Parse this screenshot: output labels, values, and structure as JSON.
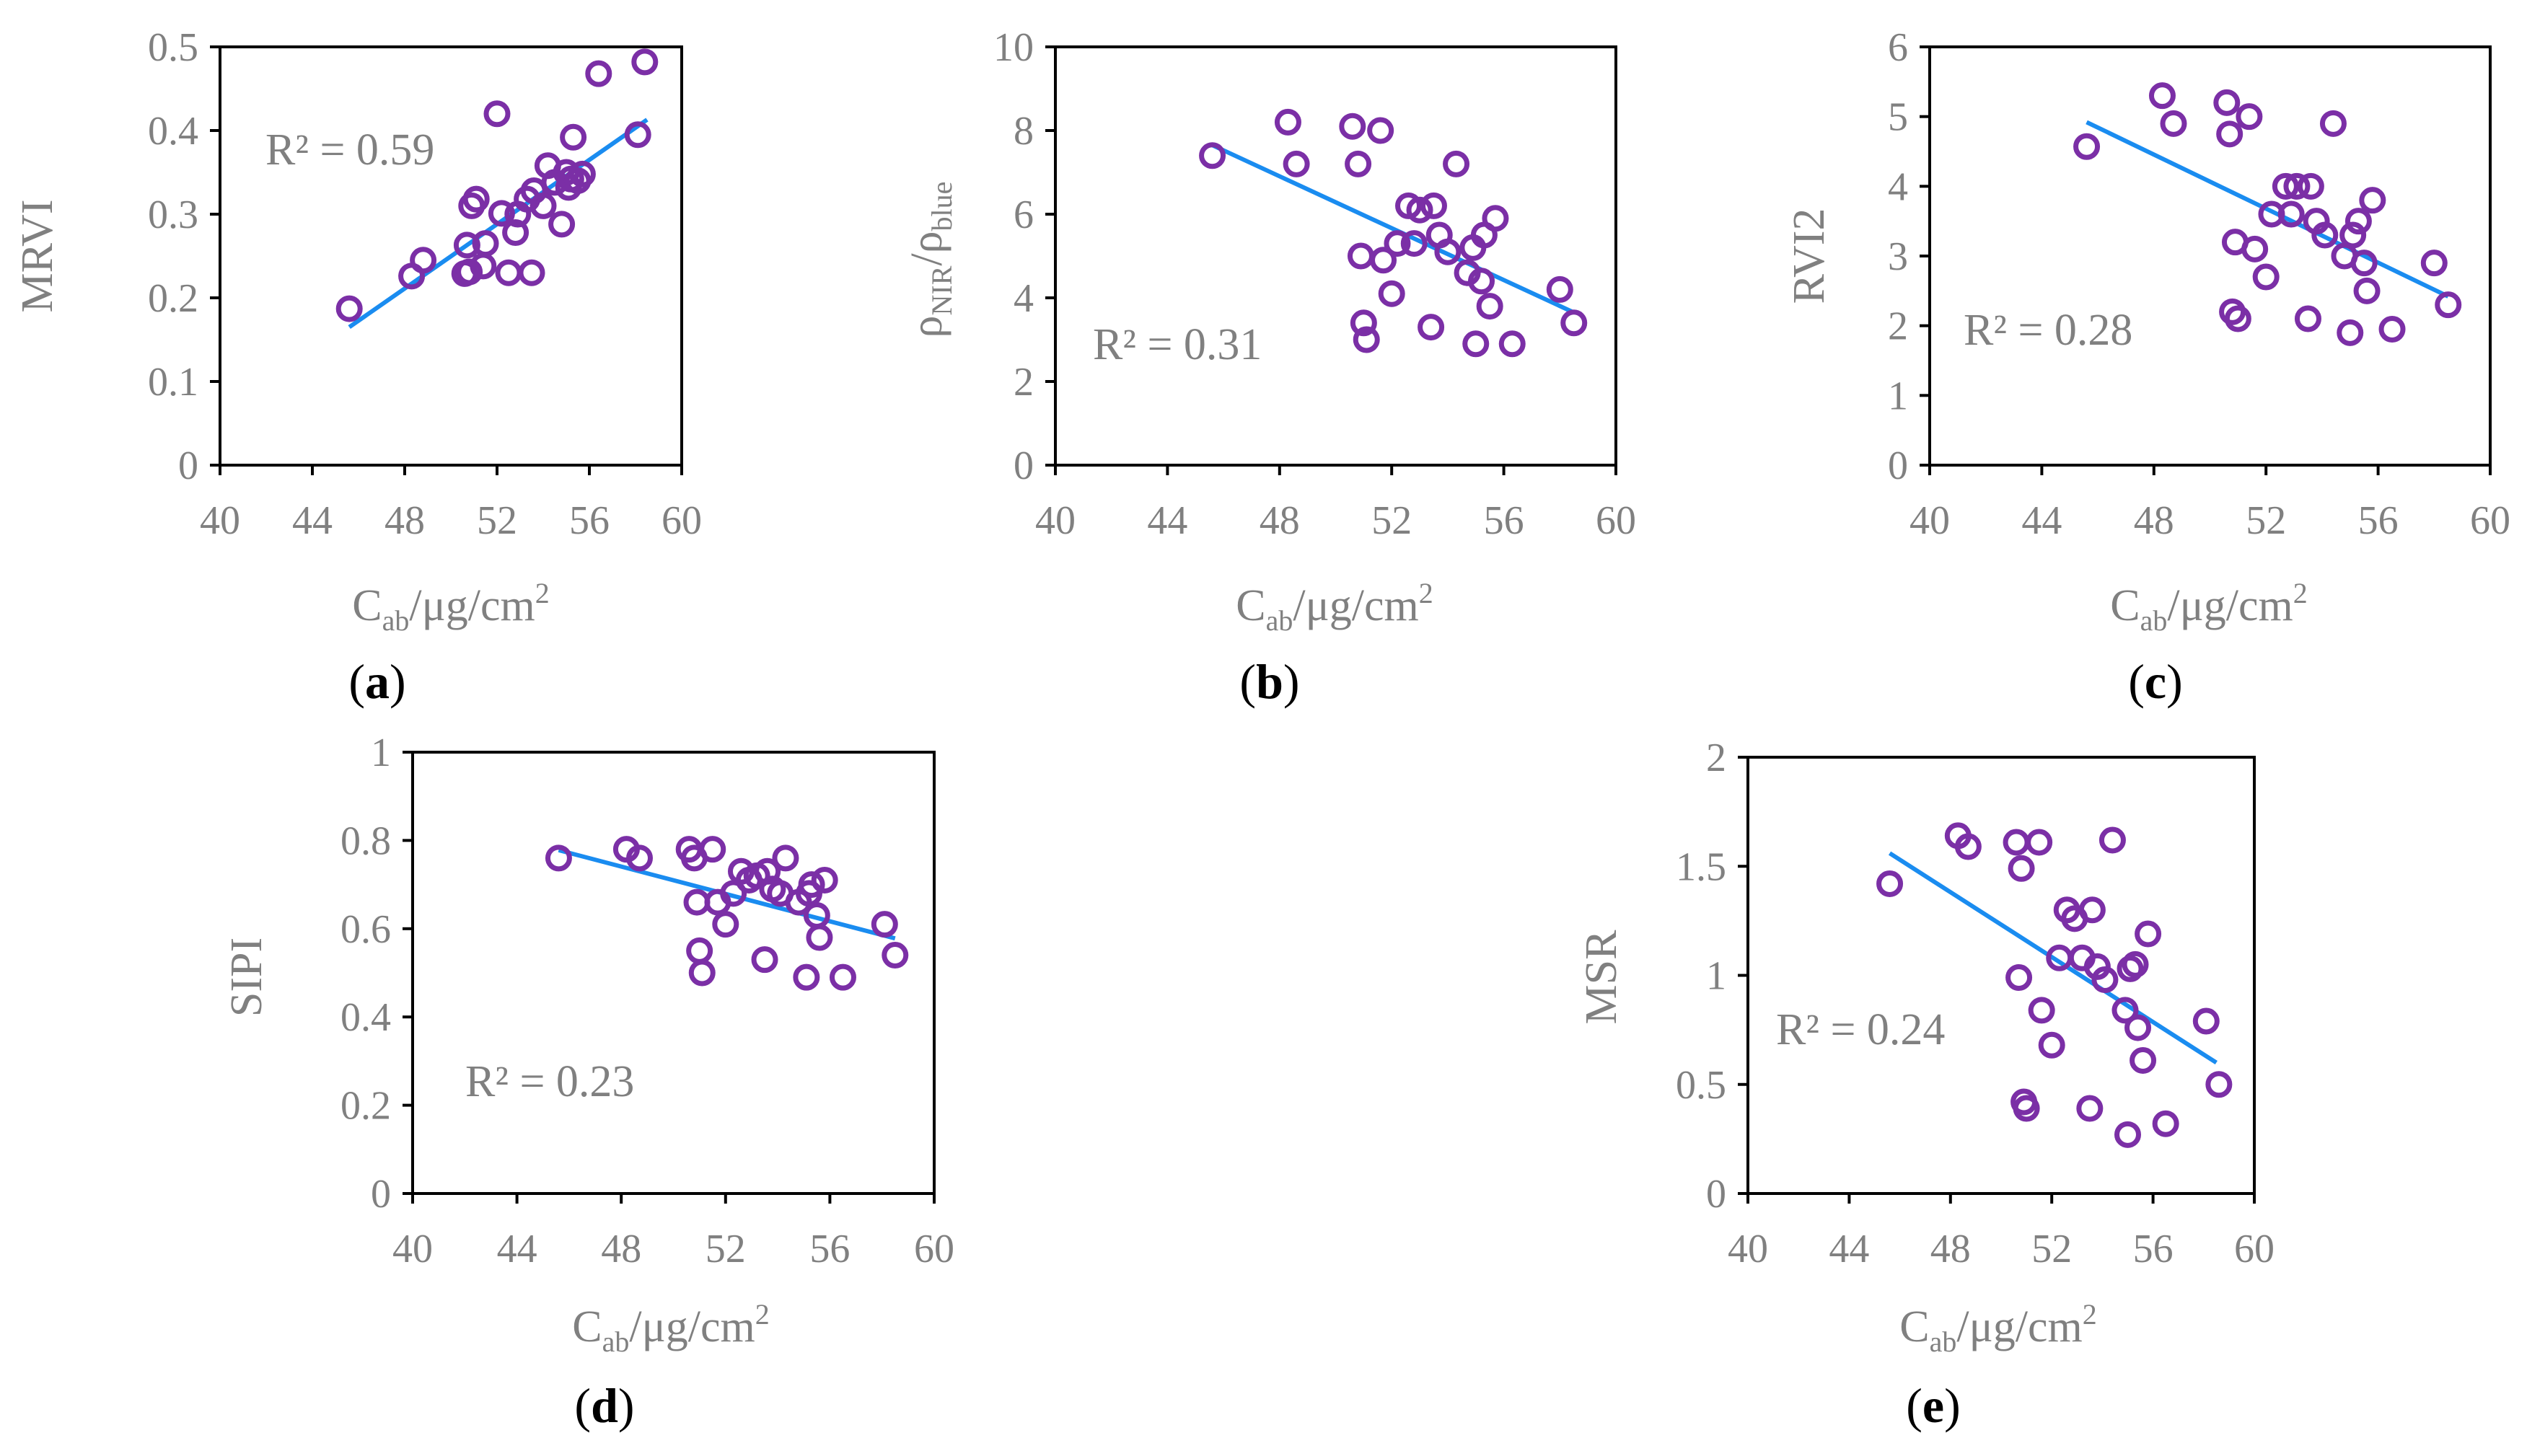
{
  "figure": {
    "panel_labels": [
      {
        "open": "(",
        "letter": "a",
        "close": ")"
      },
      {
        "open": "(",
        "letter": "b",
        "close": ")"
      },
      {
        "open": "(",
        "letter": "c",
        "close": ")"
      },
      {
        "open": "(",
        "letter": "d",
        "close": ")"
      },
      {
        "open": "(",
        "letter": "e",
        "close": ")"
      }
    ]
  },
  "colors": {
    "points": "#7b2fa6",
    "trendline": "#1a8cf0",
    "text": "#808080",
    "axes": "#000000"
  },
  "chart_data": [
    {
      "type": "scatter",
      "panel": "a",
      "ylabel": "MRVI",
      "xlabel": {
        "main": "C",
        "sub": "ab",
        "unit": "/μg/cm",
        "sup": "2"
      },
      "annotation": "R² = 0.59",
      "xlim": [
        40,
        60
      ],
      "xticks": [
        40,
        44,
        48,
        52,
        56,
        60
      ],
      "ylim": [
        0,
        0.5
      ],
      "yticks": [
        0,
        0.1,
        0.2,
        0.3,
        0.4,
        0.5
      ],
      "ytick_labels": [
        "0",
        "0.1",
        "0.2",
        "0.3",
        "0.4",
        "0.5"
      ],
      "trendline": [
        [
          45.6,
          0.165
        ],
        [
          58.5,
          0.413
        ]
      ],
      "points": [
        [
          45.6,
          0.187
        ],
        [
          48.3,
          0.226
        ],
        [
          48.8,
          0.245
        ],
        [
          50.6,
          0.229
        ],
        [
          50.8,
          0.231
        ],
        [
          50.7,
          0.263
        ],
        [
          50.9,
          0.31
        ],
        [
          51.1,
          0.318
        ],
        [
          51.4,
          0.238
        ],
        [
          51.5,
          0.265
        ],
        [
          52.0,
          0.42
        ],
        [
          52.2,
          0.301
        ],
        [
          52.5,
          0.23
        ],
        [
          52.8,
          0.278
        ],
        [
          52.9,
          0.3
        ],
        [
          53.3,
          0.318
        ],
        [
          53.5,
          0.23
        ],
        [
          53.6,
          0.328
        ],
        [
          54.0,
          0.31
        ],
        [
          54.2,
          0.358
        ],
        [
          54.5,
          0.338
        ],
        [
          54.8,
          0.288
        ],
        [
          55.0,
          0.35
        ],
        [
          55.1,
          0.332
        ],
        [
          55.2,
          0.342
        ],
        [
          55.3,
          0.392
        ],
        [
          55.5,
          0.34
        ],
        [
          55.7,
          0.348
        ],
        [
          56.4,
          0.468
        ],
        [
          58.1,
          0.395
        ],
        [
          58.4,
          0.482
        ]
      ]
    },
    {
      "type": "scatter",
      "panel": "b",
      "ylabel": {
        "main": "ρ",
        "sub1": "NIR",
        "sep": "/ρ",
        "sub2": "blue"
      },
      "xlabel": {
        "main": "C",
        "sub": "ab",
        "unit": "/μg/cm",
        "sup": "2"
      },
      "annotation": "R² = 0.31",
      "xlim": [
        40,
        60
      ],
      "xticks": [
        40,
        44,
        48,
        52,
        56,
        60
      ],
      "ylim": [
        0,
        10
      ],
      "yticks": [
        0,
        2,
        4,
        6,
        8,
        10
      ],
      "ytick_labels": [
        "0",
        "2",
        "4",
        "6",
        "8",
        "10"
      ],
      "trendline": [
        [
          45.6,
          7.65
        ],
        [
          58.5,
          3.65
        ]
      ],
      "points": [
        [
          45.6,
          7.4
        ],
        [
          48.3,
          8.2
        ],
        [
          48.6,
          7.2
        ],
        [
          50.6,
          8.1
        ],
        [
          50.8,
          7.2
        ],
        [
          50.9,
          5.0
        ],
        [
          51.0,
          3.4
        ],
        [
          51.1,
          3.0
        ],
        [
          51.6,
          8.0
        ],
        [
          51.7,
          4.9
        ],
        [
          52.0,
          4.1
        ],
        [
          52.2,
          5.3
        ],
        [
          52.6,
          6.2
        ],
        [
          52.8,
          5.3
        ],
        [
          53.0,
          6.1
        ],
        [
          53.4,
          3.3
        ],
        [
          53.5,
          6.2
        ],
        [
          53.7,
          5.5
        ],
        [
          54.0,
          5.1
        ],
        [
          54.3,
          7.2
        ],
        [
          54.7,
          4.6
        ],
        [
          54.9,
          5.2
        ],
        [
          55.0,
          2.9
        ],
        [
          55.2,
          4.4
        ],
        [
          55.3,
          5.5
        ],
        [
          55.5,
          3.8
        ],
        [
          55.7,
          5.9
        ],
        [
          56.3,
          2.9
        ],
        [
          58.0,
          4.2
        ],
        [
          58.5,
          3.4
        ]
      ]
    },
    {
      "type": "scatter",
      "panel": "c",
      "ylabel": "RVI2",
      "xlabel": {
        "main": "C",
        "sub": "ab",
        "unit": "/μg/cm",
        "sup": "2"
      },
      "annotation": "R² = 0.28",
      "xlim": [
        40,
        60
      ],
      "xticks": [
        40,
        44,
        48,
        52,
        56,
        60
      ],
      "ylim": [
        0,
        6
      ],
      "yticks": [
        0,
        1,
        2,
        3,
        4,
        5,
        6
      ],
      "ytick_labels": [
        "0",
        "1",
        "2",
        "3",
        "4",
        "5",
        "6"
      ],
      "trendline": [
        [
          45.6,
          4.92
        ],
        [
          58.5,
          2.42
        ]
      ],
      "points": [
        [
          45.6,
          4.57
        ],
        [
          48.3,
          5.3
        ],
        [
          48.7,
          4.9
        ],
        [
          50.6,
          5.2
        ],
        [
          50.7,
          4.75
        ],
        [
          50.9,
          3.2
        ],
        [
          50.8,
          2.2
        ],
        [
          51.0,
          2.1
        ],
        [
          51.4,
          5.0
        ],
        [
          51.6,
          3.1
        ],
        [
          52.0,
          2.7
        ],
        [
          52.2,
          3.6
        ],
        [
          52.7,
          4.0
        ],
        [
          52.9,
          3.6
        ],
        [
          53.1,
          4.0
        ],
        [
          53.5,
          2.1
        ],
        [
          53.6,
          4.0
        ],
        [
          53.8,
          3.5
        ],
        [
          54.1,
          3.3
        ],
        [
          54.4,
          4.9
        ],
        [
          54.8,
          3.0
        ],
        [
          55.0,
          1.9
        ],
        [
          55.1,
          3.3
        ],
        [
          55.3,
          3.5
        ],
        [
          55.5,
          2.9
        ],
        [
          55.6,
          2.5
        ],
        [
          55.8,
          3.8
        ],
        [
          56.5,
          1.95
        ],
        [
          58.0,
          2.9
        ],
        [
          58.5,
          2.3
        ]
      ]
    },
    {
      "type": "scatter",
      "panel": "d",
      "ylabel": "SIPI",
      "xlabel": {
        "main": "C",
        "sub": "ab",
        "unit": "/μg/cm",
        "sup": "2"
      },
      "annotation": "R² = 0.23",
      "xlim": [
        40,
        60
      ],
      "xticks": [
        40,
        44,
        48,
        52,
        56,
        60
      ],
      "ylim": [
        0,
        1
      ],
      "yticks": [
        0,
        0.2,
        0.4,
        0.6,
        0.8,
        1
      ],
      "ytick_labels": [
        "0",
        "0.2",
        "0.4",
        "0.6",
        "0.8",
        "1"
      ],
      "trendline": [
        [
          45.6,
          0.778
        ],
        [
          58.5,
          0.578
        ]
      ],
      "points": [
        [
          45.6,
          0.76
        ],
        [
          48.2,
          0.78
        ],
        [
          48.7,
          0.76
        ],
        [
          50.6,
          0.78
        ],
        [
          50.8,
          0.76
        ],
        [
          50.9,
          0.66
        ],
        [
          51.0,
          0.55
        ],
        [
          51.1,
          0.5
        ],
        [
          51.5,
          0.78
        ],
        [
          51.7,
          0.66
        ],
        [
          52.0,
          0.61
        ],
        [
          52.3,
          0.68
        ],
        [
          52.6,
          0.73
        ],
        [
          52.9,
          0.71
        ],
        [
          53.2,
          0.72
        ],
        [
          53.5,
          0.53
        ],
        [
          53.6,
          0.73
        ],
        [
          53.8,
          0.69
        ],
        [
          54.1,
          0.68
        ],
        [
          54.3,
          0.76
        ],
        [
          54.8,
          0.66
        ],
        [
          55.1,
          0.49
        ],
        [
          55.2,
          0.68
        ],
        [
          55.3,
          0.7
        ],
        [
          55.5,
          0.63
        ],
        [
          55.6,
          0.58
        ],
        [
          55.8,
          0.71
        ],
        [
          56.5,
          0.49
        ],
        [
          58.1,
          0.61
        ],
        [
          58.5,
          0.54
        ]
      ]
    },
    {
      "type": "scatter",
      "panel": "e",
      "ylabel": "MSR",
      "xlabel": {
        "main": "C",
        "sub": "ab",
        "unit": "/μg/cm",
        "sup": "2"
      },
      "annotation": "R² = 0.24",
      "xlim": [
        40,
        60
      ],
      "xticks": [
        40,
        44,
        48,
        52,
        56,
        60
      ],
      "ylim": [
        0,
        2
      ],
      "yticks": [
        0,
        0.5,
        1,
        1.5,
        2
      ],
      "ytick_labels": [
        "0",
        "0.5",
        "1",
        "1.5",
        "2"
      ],
      "trendline": [
        [
          45.6,
          1.56
        ],
        [
          58.5,
          0.6
        ]
      ],
      "points": [
        [
          45.6,
          1.42
        ],
        [
          48.3,
          1.64
        ],
        [
          48.7,
          1.59
        ],
        [
          50.6,
          1.61
        ],
        [
          50.8,
          1.49
        ],
        [
          50.7,
          0.99
        ],
        [
          50.9,
          0.42
        ],
        [
          51.0,
          0.39
        ],
        [
          51.5,
          1.61
        ],
        [
          51.6,
          0.84
        ],
        [
          52.0,
          0.68
        ],
        [
          52.3,
          1.08
        ],
        [
          52.6,
          1.3
        ],
        [
          52.9,
          1.26
        ],
        [
          53.2,
          1.08
        ],
        [
          53.5,
          0.39
        ],
        [
          53.6,
          1.3
        ],
        [
          53.8,
          1.04
        ],
        [
          54.1,
          0.98
        ],
        [
          54.4,
          1.62
        ],
        [
          54.9,
          0.84
        ],
        [
          55.0,
          0.27
        ],
        [
          55.1,
          1.03
        ],
        [
          55.3,
          1.05
        ],
        [
          55.4,
          0.76
        ],
        [
          55.6,
          0.61
        ],
        [
          55.8,
          1.19
        ],
        [
          56.5,
          0.32
        ],
        [
          58.1,
          0.79
        ],
        [
          58.6,
          0.5
        ]
      ]
    }
  ]
}
